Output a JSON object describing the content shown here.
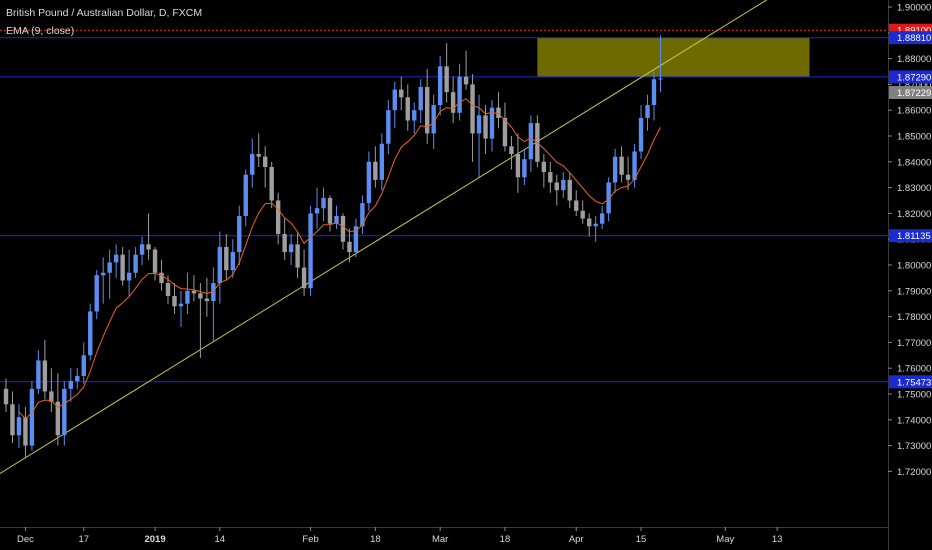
{
  "header": {
    "title": "British Pound / Australian Dollar, D, FXCM",
    "indicator": "EMA (9, close)"
  },
  "colors": {
    "background": "#000000",
    "bull": "#5b8ef0",
    "bear": "#9e9e9e",
    "ema": "#e8641e",
    "trendline": "#c8c84a",
    "hline": "#1c2bd0",
    "red_line": "#ff2020",
    "zone": "#7a7500",
    "axis_text": "#d9d9d9",
    "price_tag": "#808080"
  },
  "chart_data": {
    "type": "candlestick",
    "instrument": "British Pound / Australian Dollar",
    "timeframe": "D",
    "source": "FXCM",
    "indicator": "EMA (9, close)",
    "ylim": [
      1.714,
      1.907
    ],
    "yticks": [
      1.72,
      1.73,
      1.74,
      1.75,
      1.76,
      1.77,
      1.78,
      1.79,
      1.8,
      1.81,
      1.82,
      1.83,
      1.84,
      1.85,
      1.86,
      1.87,
      1.88,
      1.89,
      1.9
    ],
    "ytick_labels": [
      "1.72000",
      "1.73000",
      "1.74000",
      "1.75000",
      "1.76000",
      "1.77000",
      "1.78000",
      "1.79000",
      "1.80000",
      "1.81000",
      "1.82000",
      "1.83000",
      "1.84000",
      "1.85000",
      "1.86000",
      "1.87000",
      "1.88000",
      "1.89000",
      "1.90000"
    ],
    "xticks": [
      {
        "label": "Dec",
        "bar": 3
      },
      {
        "label": "17",
        "bar": 12
      },
      {
        "label": "2019",
        "bar": 23
      },
      {
        "label": "14",
        "bar": 33
      },
      {
        "label": "Feb",
        "bar": 47
      },
      {
        "label": "18",
        "bar": 57
      },
      {
        "label": "Mar",
        "bar": 67
      },
      {
        "label": "18",
        "bar": 77
      },
      {
        "label": "Apr",
        "bar": 88
      },
      {
        "label": "15",
        "bar": 98
      },
      {
        "label": "May",
        "bar": 111
      },
      {
        "label": "13",
        "bar": 119
      }
    ],
    "ohlc": [
      [
        1.752,
        1.756,
        1.743,
        1.746
      ],
      [
        1.746,
        1.751,
        1.731,
        1.734
      ],
      [
        1.734,
        1.746,
        1.729,
        1.741
      ],
      [
        1.741,
        1.745,
        1.725,
        1.73
      ],
      [
        1.73,
        1.755,
        1.728,
        1.752
      ],
      [
        1.752,
        1.767,
        1.75,
        1.763
      ],
      [
        1.763,
        1.771,
        1.748,
        1.751
      ],
      [
        1.751,
        1.76,
        1.743,
        1.747
      ],
      [
        1.747,
        1.758,
        1.73,
        1.734
      ],
      [
        1.734,
        1.755,
        1.73,
        1.752
      ],
      [
        1.752,
        1.76,
        1.747,
        1.755
      ],
      [
        1.755,
        1.76,
        1.752,
        1.757
      ],
      [
        1.757,
        1.77,
        1.754,
        1.765
      ],
      [
        1.765,
        1.785,
        1.763,
        1.782
      ],
      [
        1.782,
        1.798,
        1.779,
        1.796
      ],
      [
        1.796,
        1.803,
        1.785,
        1.797
      ],
      [
        1.797,
        1.806,
        1.787,
        1.801
      ],
      [
        1.801,
        1.808,
        1.795,
        1.804
      ],
      [
        1.804,
        1.807,
        1.792,
        1.794
      ],
      [
        1.794,
        1.806,
        1.788,
        1.797
      ],
      [
        1.797,
        1.807,
        1.795,
        1.804
      ],
      [
        1.804,
        1.811,
        1.8,
        1.808
      ],
      [
        1.808,
        1.82,
        1.802,
        1.806
      ],
      [
        1.806,
        1.807,
        1.794,
        1.797
      ],
      [
        1.797,
        1.802,
        1.79,
        1.793
      ],
      [
        1.793,
        1.796,
        1.785,
        1.788
      ],
      [
        1.788,
        1.793,
        1.781,
        1.784
      ],
      [
        1.784,
        1.79,
        1.776,
        1.785
      ],
      [
        1.785,
        1.797,
        1.781,
        1.79
      ],
      [
        1.79,
        1.796,
        1.786,
        1.789
      ],
      [
        1.789,
        1.793,
        1.764,
        1.787
      ],
      [
        1.787,
        1.795,
        1.78,
        1.786
      ],
      [
        1.786,
        1.799,
        1.77,
        1.793
      ],
      [
        1.793,
        1.813,
        1.785,
        1.807
      ],
      [
        1.807,
        1.812,
        1.794,
        1.798
      ],
      [
        1.798,
        1.81,
        1.795,
        1.805
      ],
      [
        1.805,
        1.823,
        1.8,
        1.819
      ],
      [
        1.819,
        1.837,
        1.815,
        1.835
      ],
      [
        1.835,
        1.849,
        1.83,
        1.843
      ],
      [
        1.843,
        1.851,
        1.838,
        1.842
      ],
      [
        1.842,
        1.846,
        1.83,
        1.838
      ],
      [
        1.838,
        1.84,
        1.822,
        1.825
      ],
      [
        1.825,
        1.828,
        1.808,
        1.812
      ],
      [
        1.812,
        1.818,
        1.802,
        1.805
      ],
      [
        1.805,
        1.812,
        1.8,
        1.808
      ],
      [
        1.808,
        1.813,
        1.795,
        1.799
      ],
      [
        1.799,
        1.806,
        1.788,
        1.791
      ],
      [
        1.791,
        1.823,
        1.788,
        1.82
      ],
      [
        1.82,
        1.83,
        1.814,
        1.822
      ],
      [
        1.822,
        1.83,
        1.817,
        1.826
      ],
      [
        1.826,
        1.827,
        1.813,
        1.816
      ],
      [
        1.816,
        1.823,
        1.814,
        1.819
      ],
      [
        1.819,
        1.82,
        1.806,
        1.809
      ],
      [
        1.809,
        1.814,
        1.801,
        1.805
      ],
      [
        1.805,
        1.818,
        1.803,
        1.815
      ],
      [
        1.815,
        1.827,
        1.812,
        1.824
      ],
      [
        1.824,
        1.844,
        1.821,
        1.84
      ],
      [
        1.84,
        1.846,
        1.83,
        1.833
      ],
      [
        1.833,
        1.851,
        1.829,
        1.847
      ],
      [
        1.847,
        1.864,
        1.843,
        1.86
      ],
      [
        1.86,
        1.871,
        1.853,
        1.868
      ],
      [
        1.868,
        1.873,
        1.86,
        1.865
      ],
      [
        1.865,
        1.87,
        1.852,
        1.856
      ],
      [
        1.856,
        1.863,
        1.851,
        1.86
      ],
      [
        1.86,
        1.872,
        1.855,
        1.869
      ],
      [
        1.869,
        1.876,
        1.847,
        1.851
      ],
      [
        1.851,
        1.866,
        1.845,
        1.862
      ],
      [
        1.862,
        1.881,
        1.858,
        1.877
      ],
      [
        1.877,
        1.886,
        1.863,
        1.867
      ],
      [
        1.867,
        1.873,
        1.855,
        1.859
      ],
      [
        1.859,
        1.878,
        1.856,
        1.873
      ],
      [
        1.873,
        1.883,
        1.868,
        1.87
      ],
      [
        1.87,
        1.874,
        1.84,
        1.851
      ],
      [
        1.851,
        1.866,
        1.834,
        1.858
      ],
      [
        1.858,
        1.862,
        1.843,
        1.849
      ],
      [
        1.849,
        1.864,
        1.844,
        1.861
      ],
      [
        1.861,
        1.867,
        1.853,
        1.857
      ],
      [
        1.857,
        1.863,
        1.844,
        1.846
      ],
      [
        1.846,
        1.85,
        1.837,
        1.843
      ],
      [
        1.843,
        1.851,
        1.828,
        1.834
      ],
      [
        1.834,
        1.845,
        1.831,
        1.841
      ],
      [
        1.841,
        1.858,
        1.836,
        1.855
      ],
      [
        1.855,
        1.858,
        1.838,
        1.84
      ],
      [
        1.84,
        1.843,
        1.83,
        1.836
      ],
      [
        1.836,
        1.84,
        1.828,
        1.832
      ],
      [
        1.832,
        1.835,
        1.823,
        1.829
      ],
      [
        1.829,
        1.836,
        1.826,
        1.833
      ],
      [
        1.833,
        1.836,
        1.822,
        1.825
      ],
      [
        1.825,
        1.829,
        1.819,
        1.821
      ],
      [
        1.821,
        1.825,
        1.816,
        1.818
      ],
      [
        1.818,
        1.82,
        1.811,
        1.815
      ],
      [
        1.815,
        1.819,
        1.809,
        1.816
      ],
      [
        1.816,
        1.823,
        1.814,
        1.82
      ],
      [
        1.82,
        1.834,
        1.817,
        1.832
      ],
      [
        1.832,
        1.845,
        1.828,
        1.842
      ],
      [
        1.842,
        1.846,
        1.832,
        1.835
      ],
      [
        1.835,
        1.842,
        1.829,
        1.833
      ],
      [
        1.833,
        1.847,
        1.83,
        1.844
      ],
      [
        1.844,
        1.862,
        1.841,
        1.857
      ],
      [
        1.857,
        1.866,
        1.852,
        1.862
      ],
      [
        1.862,
        1.875,
        1.856,
        1.872
      ],
      [
        1.872,
        1.889,
        1.867,
        1.8723
      ]
    ],
    "ema_start_bar": 2,
    "trendline": {
      "from": {
        "bar": -3,
        "price": 1.716
      },
      "to": {
        "bar": 124,
        "price": 1.913
      }
    },
    "zone": {
      "from_bar": 82,
      "to_bar": 124,
      "top": 1.8881,
      "bottom": 1.8729
    },
    "levels": [
      {
        "price": 1.891,
        "label": "1.89100",
        "color": "red",
        "style": "dotted"
      },
      {
        "price": 1.8881,
        "label": "1.88810",
        "color": "blue"
      },
      {
        "price": 1.8729,
        "label": "1.87290",
        "color": "blue"
      },
      {
        "price": 1.81135,
        "label": "1.81135",
        "color": "blue"
      },
      {
        "price": 1.75473,
        "label": "1.75473",
        "color": "blue"
      }
    ],
    "last_price": {
      "price": 1.87229,
      "label": "1.87229"
    }
  }
}
